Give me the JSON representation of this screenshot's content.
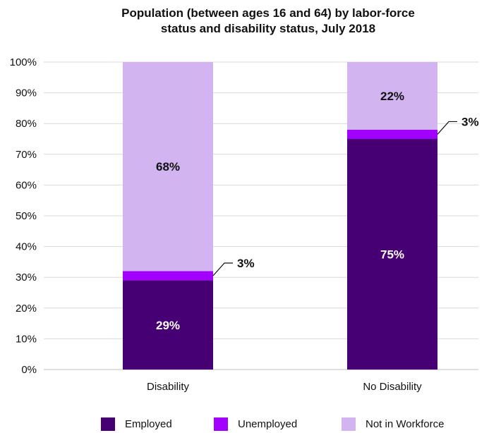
{
  "chart_data": {
    "type": "bar",
    "stacked": true,
    "title_lines": [
      "Population (between ages 16 and 64) by labor-force",
      "status and disability status, July 2018"
    ],
    "categories": [
      "Disability",
      "No Disability"
    ],
    "ylim": [
      0,
      100
    ],
    "yticks": [
      0,
      10,
      20,
      30,
      40,
      50,
      60,
      70,
      80,
      90,
      100
    ],
    "ytick_labels": [
      "0%",
      "10%",
      "20%",
      "30%",
      "40%",
      "50%",
      "60%",
      "70%",
      "80%",
      "90%",
      "100%"
    ],
    "grid": true,
    "legend_position": "bottom",
    "series": [
      {
        "name": "Employed",
        "color": "#470073",
        "values": [
          29,
          75
        ],
        "labels": [
          "29%",
          "75%"
        ]
      },
      {
        "name": "Unemployed",
        "color": "#a200ff",
        "values": [
          3,
          3
        ],
        "labels": [
          "3%",
          "3%"
        ]
      },
      {
        "name": "Not in Workforce",
        "color": "#d2b4f0",
        "values": [
          68,
          22
        ],
        "labels": [
          "68%",
          "22%"
        ]
      }
    ]
  }
}
